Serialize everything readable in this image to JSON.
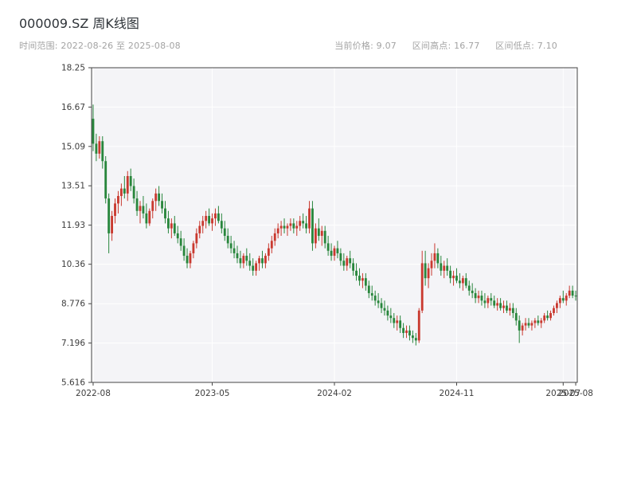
{
  "header": {
    "title": "000009.SZ 周K线图",
    "range_label": "时间范围: 2022-08-26 至 2025-08-08",
    "stats": [
      "当前价格: 9.07",
      "区间高点: 16.77",
      "区间低点: 7.10"
    ]
  },
  "chart_data": {
    "type": "candlestick",
    "title": "000009.SZ 周K线图",
    "symbol": "000009.SZ",
    "interval": "weekly",
    "current_price": 9.07,
    "range_high": 16.77,
    "range_low": 7.1,
    "ylim": [
      5.616,
      18.25
    ],
    "y_ticks": [
      "18.25",
      "16.67",
      "15.09",
      "13.51",
      "11.93",
      "10.36",
      "8.776",
      "7.196",
      "5.616"
    ],
    "x_ticks": [
      "2022-08",
      "2023-05",
      "2024-02",
      "2024-11",
      "2025-07",
      "2025-08"
    ],
    "x_tick_positions": [
      0,
      38,
      77,
      116,
      150,
      154
    ],
    "grid": true,
    "up_color": "#c9392f",
    "down_color": "#28863c",
    "plot_bg": "#f4f4f7",
    "grid_color": "#ffffff",
    "spine_color": "#444444",
    "candles": [
      [
        16.2,
        16.77,
        14.9,
        15.2
      ],
      [
        15.2,
        15.6,
        14.5,
        14.8
      ],
      [
        14.8,
        15.5,
        14.6,
        15.3
      ],
      [
        15.3,
        15.5,
        14.2,
        14.5
      ],
      [
        14.5,
        14.7,
        12.8,
        13.0
      ],
      [
        13.0,
        13.2,
        10.8,
        11.6
      ],
      [
        11.6,
        12.5,
        11.3,
        12.3
      ],
      [
        12.3,
        13.0,
        12.0,
        12.8
      ],
      [
        12.8,
        13.3,
        12.4,
        13.1
      ],
      [
        13.1,
        13.6,
        12.7,
        13.4
      ],
      [
        13.4,
        13.9,
        13.0,
        13.2
      ],
      [
        13.2,
        14.1,
        12.9,
        13.9
      ],
      [
        13.9,
        14.2,
        13.3,
        13.5
      ],
      [
        13.5,
        13.8,
        12.8,
        13.0
      ],
      [
        13.0,
        13.3,
        12.3,
        12.5
      ],
      [
        12.5,
        12.9,
        12.0,
        12.7
      ],
      [
        12.7,
        13.1,
        12.2,
        12.4
      ],
      [
        12.4,
        12.8,
        11.8,
        12.0
      ],
      [
        12.0,
        12.6,
        11.9,
        12.5
      ],
      [
        12.5,
        13.0,
        12.2,
        12.9
      ],
      [
        12.9,
        13.4,
        12.5,
        13.2
      ],
      [
        13.2,
        13.5,
        12.7,
        12.9
      ],
      [
        12.9,
        13.2,
        12.4,
        12.6
      ],
      [
        12.6,
        12.9,
        12.0,
        12.2
      ],
      [
        12.2,
        12.5,
        11.6,
        11.8
      ],
      [
        11.8,
        12.2,
        11.4,
        12.0
      ],
      [
        12.0,
        12.3,
        11.5,
        11.6
      ],
      [
        11.6,
        11.9,
        11.2,
        11.4
      ],
      [
        11.4,
        11.7,
        10.9,
        11.1
      ],
      [
        11.1,
        11.4,
        10.5,
        10.7
      ],
      [
        10.7,
        11.0,
        10.2,
        10.4
      ],
      [
        10.4,
        10.9,
        10.2,
        10.8
      ],
      [
        10.8,
        11.3,
        10.6,
        11.2
      ],
      [
        11.2,
        11.8,
        11.0,
        11.6
      ],
      [
        11.6,
        12.1,
        11.4,
        11.9
      ],
      [
        11.9,
        12.3,
        11.6,
        12.1
      ],
      [
        12.1,
        12.5,
        11.8,
        12.3
      ],
      [
        12.3,
        12.6,
        11.9,
        12.0
      ],
      [
        12.0,
        12.4,
        11.7,
        12.2
      ],
      [
        12.2,
        12.6,
        11.9,
        12.4
      ],
      [
        12.4,
        12.7,
        12.0,
        12.1
      ],
      [
        12.1,
        12.4,
        11.6,
        11.8
      ],
      [
        11.8,
        12.1,
        11.3,
        11.5
      ],
      [
        11.5,
        11.8,
        11.0,
        11.2
      ],
      [
        11.2,
        11.5,
        10.8,
        11.0
      ],
      [
        11.0,
        11.3,
        10.6,
        10.8
      ],
      [
        10.8,
        11.1,
        10.4,
        10.6
      ],
      [
        10.6,
        10.9,
        10.2,
        10.4
      ],
      [
        10.4,
        10.8,
        10.2,
        10.7
      ],
      [
        10.7,
        11.0,
        10.3,
        10.5
      ],
      [
        10.5,
        10.8,
        10.1,
        10.3
      ],
      [
        10.3,
        10.6,
        9.9,
        10.1
      ],
      [
        10.1,
        10.5,
        9.9,
        10.4
      ],
      [
        10.4,
        10.7,
        10.1,
        10.6
      ],
      [
        10.6,
        10.9,
        10.2,
        10.4
      ],
      [
        10.4,
        10.8,
        10.2,
        10.7
      ],
      [
        10.7,
        11.2,
        10.5,
        11.0
      ],
      [
        11.0,
        11.5,
        10.8,
        11.3
      ],
      [
        11.3,
        11.8,
        11.1,
        11.6
      ],
      [
        11.6,
        12.0,
        11.4,
        11.8
      ],
      [
        11.8,
        12.1,
        11.5,
        11.9
      ],
      [
        11.9,
        12.2,
        11.6,
        11.8
      ],
      [
        11.8,
        12.0,
        11.5,
        11.9
      ],
      [
        11.9,
        12.2,
        11.7,
        12.0
      ],
      [
        12.0,
        12.2,
        11.6,
        11.8
      ],
      [
        11.8,
        12.1,
        11.5,
        11.9
      ],
      [
        11.9,
        12.3,
        11.7,
        12.1
      ],
      [
        12.1,
        12.4,
        11.8,
        12.0
      ],
      [
        12.0,
        12.3,
        11.6,
        11.8
      ],
      [
        11.8,
        12.9,
        11.6,
        12.6
      ],
      [
        12.6,
        12.9,
        10.9,
        11.2
      ],
      [
        11.2,
        12.0,
        11.0,
        11.8
      ],
      [
        11.8,
        12.2,
        11.3,
        11.5
      ],
      [
        11.5,
        11.9,
        11.1,
        11.7
      ],
      [
        11.7,
        11.9,
        11.0,
        11.2
      ],
      [
        11.2,
        11.5,
        10.7,
        10.9
      ],
      [
        10.9,
        11.2,
        10.5,
        10.7
      ],
      [
        10.7,
        11.1,
        10.5,
        11.0
      ],
      [
        11.0,
        11.3,
        10.6,
        10.8
      ],
      [
        10.8,
        11.0,
        10.3,
        10.5
      ],
      [
        10.5,
        10.8,
        10.1,
        10.3
      ],
      [
        10.3,
        10.7,
        10.1,
        10.6
      ],
      [
        10.6,
        10.9,
        10.2,
        10.4
      ],
      [
        10.4,
        10.6,
        9.9,
        10.1
      ],
      [
        10.1,
        10.4,
        9.7,
        9.9
      ],
      [
        9.9,
        10.2,
        9.5,
        9.7
      ],
      [
        9.7,
        10.0,
        9.4,
        9.8
      ],
      [
        9.8,
        10.0,
        9.3,
        9.5
      ],
      [
        9.5,
        9.7,
        9.0,
        9.2
      ],
      [
        9.2,
        9.5,
        8.9,
        9.1
      ],
      [
        9.1,
        9.3,
        8.7,
        8.9
      ],
      [
        8.9,
        9.2,
        8.6,
        8.8
      ],
      [
        8.8,
        9.0,
        8.4,
        8.6
      ],
      [
        8.6,
        8.9,
        8.3,
        8.5
      ],
      [
        8.5,
        8.7,
        8.1,
        8.3
      ],
      [
        8.3,
        8.6,
        8.0,
        8.2
      ],
      [
        8.2,
        8.4,
        7.8,
        8.0
      ],
      [
        8.0,
        8.3,
        7.7,
        8.1
      ],
      [
        8.1,
        8.3,
        7.6,
        7.8
      ],
      [
        7.8,
        8.0,
        7.4,
        7.6
      ],
      [
        7.6,
        7.9,
        7.4,
        7.7
      ],
      [
        7.7,
        7.9,
        7.3,
        7.5
      ],
      [
        7.5,
        7.7,
        7.2,
        7.4
      ],
      [
        7.4,
        7.6,
        7.1,
        7.3
      ],
      [
        7.3,
        8.6,
        7.2,
        8.5
      ],
      [
        8.5,
        10.9,
        8.4,
        10.4
      ],
      [
        10.4,
        10.9,
        9.5,
        9.8
      ],
      [
        9.8,
        10.4,
        9.4,
        10.2
      ],
      [
        10.2,
        10.8,
        9.9,
        10.5
      ],
      [
        10.5,
        11.2,
        10.2,
        10.8
      ],
      [
        10.8,
        11.0,
        10.2,
        10.4
      ],
      [
        10.4,
        10.7,
        9.9,
        10.1
      ],
      [
        10.1,
        10.5,
        9.8,
        10.3
      ],
      [
        10.3,
        10.6,
        9.9,
        10.1
      ],
      [
        10.1,
        10.3,
        9.6,
        9.8
      ],
      [
        9.8,
        10.1,
        9.5,
        9.9
      ],
      [
        9.9,
        10.2,
        9.6,
        9.7
      ],
      [
        9.7,
        10.0,
        9.4,
        9.6
      ],
      [
        9.6,
        9.9,
        9.3,
        9.8
      ],
      [
        9.8,
        10.0,
        9.4,
        9.5
      ],
      [
        9.5,
        9.7,
        9.1,
        9.3
      ],
      [
        9.3,
        9.6,
        9.0,
        9.2
      ],
      [
        9.2,
        9.4,
        8.8,
        9.0
      ],
      [
        9.0,
        9.3,
        8.8,
        9.1
      ],
      [
        9.1,
        9.3,
        8.7,
        8.9
      ],
      [
        8.9,
        9.2,
        8.6,
        8.8
      ],
      [
        8.8,
        9.1,
        8.6,
        9.0
      ],
      [
        9.0,
        9.2,
        8.7,
        8.9
      ],
      [
        8.9,
        9.1,
        8.6,
        8.7
      ],
      [
        8.7,
        9.0,
        8.5,
        8.8
      ],
      [
        8.8,
        9.0,
        8.5,
        8.6
      ],
      [
        8.6,
        8.9,
        8.4,
        8.7
      ],
      [
        8.7,
        8.9,
        8.4,
        8.5
      ],
      [
        8.5,
        8.8,
        8.3,
        8.6
      ],
      [
        8.6,
        8.8,
        8.2,
        8.4
      ],
      [
        8.4,
        8.6,
        7.9,
        8.1
      ],
      [
        8.1,
        8.3,
        7.2,
        7.7
      ],
      [
        7.7,
        8.0,
        7.5,
        7.9
      ],
      [
        7.9,
        8.2,
        7.7,
        8.0
      ],
      [
        8.0,
        8.2,
        7.8,
        7.9
      ],
      [
        7.9,
        8.1,
        7.7,
        8.0
      ],
      [
        8.0,
        8.2,
        7.8,
        8.1
      ],
      [
        8.1,
        8.3,
        7.9,
        8.0
      ],
      [
        8.0,
        8.2,
        7.8,
        8.1
      ],
      [
        8.1,
        8.4,
        8.0,
        8.3
      ],
      [
        8.3,
        8.5,
        8.1,
        8.2
      ],
      [
        8.2,
        8.5,
        8.1,
        8.4
      ],
      [
        8.4,
        8.7,
        8.3,
        8.6
      ],
      [
        8.6,
        8.9,
        8.4,
        8.8
      ],
      [
        8.8,
        9.1,
        8.6,
        9.0
      ],
      [
        9.0,
        9.3,
        8.8,
        8.9
      ],
      [
        8.9,
        9.2,
        8.7,
        9.1
      ],
      [
        9.1,
        9.5,
        9.0,
        9.3
      ],
      [
        9.3,
        9.5,
        9.0,
        9.1
      ],
      [
        9.1,
        9.3,
        8.9,
        9.07
      ]
    ]
  }
}
